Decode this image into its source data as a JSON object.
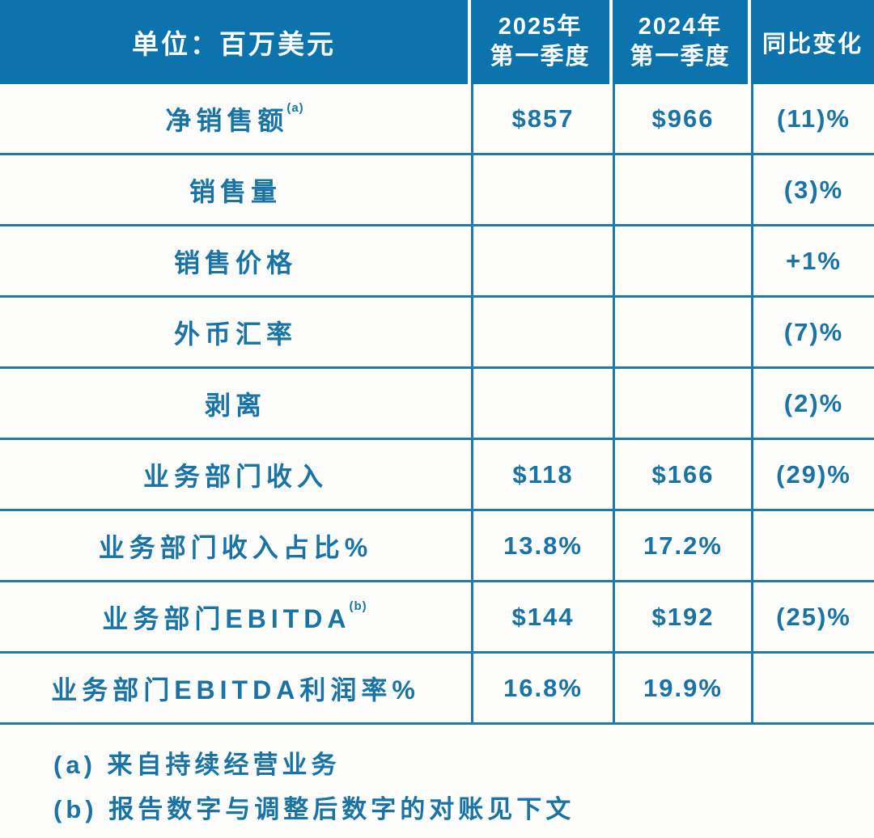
{
  "colors": {
    "header_bg": "#0d73ac",
    "text_blue": "#1973a5",
    "border_blue": "#1e7ba9",
    "page_bg": "#fcfcfa",
    "header_text": "#ffffff"
  },
  "header": {
    "unit_label": "单位：百万美元",
    "col_2025": [
      "2025年",
      "第一季度"
    ],
    "col_2024": [
      "2024年",
      "第一季度"
    ],
    "col_change": "同比变化"
  },
  "rows": [
    {
      "label": "净销售额",
      "sup": "(a)",
      "q1_2025": "$857",
      "q1_2024": "$966",
      "yoy_change": "(11)%"
    },
    {
      "label": "销售量",
      "sup": "",
      "q1_2025": "",
      "q1_2024": "",
      "yoy_change": "(3)%"
    },
    {
      "label": "销售价格",
      "sup": "",
      "q1_2025": "",
      "q1_2024": "",
      "yoy_change": "+1%"
    },
    {
      "label": "外币汇率",
      "sup": "",
      "q1_2025": "",
      "q1_2024": "",
      "yoy_change": "(7)%"
    },
    {
      "label": "剥离",
      "sup": "",
      "q1_2025": "",
      "q1_2024": "",
      "yoy_change": "(2)%"
    },
    {
      "label": "业务部门收入",
      "sup": "",
      "q1_2025": "$118",
      "q1_2024": "$166",
      "yoy_change": "(29)%"
    },
    {
      "label": "业务部门收入占比%",
      "sup": "",
      "q1_2025": "13.8%",
      "q1_2024": "17.2%",
      "yoy_change": ""
    },
    {
      "label": "业务部门EBITDA",
      "sup": "(b)",
      "q1_2025": "$144",
      "q1_2024": "$192",
      "yoy_change": "(25)%"
    },
    {
      "label": "业务部门EBITDA利润率%",
      "sup": "",
      "q1_2025": "16.8%",
      "q1_2024": "19.9%",
      "yoy_change": ""
    }
  ],
  "footnotes": [
    "(a) 来自持续经营业务",
    "(b) 报告数字与调整后数字的对账见下文"
  ]
}
